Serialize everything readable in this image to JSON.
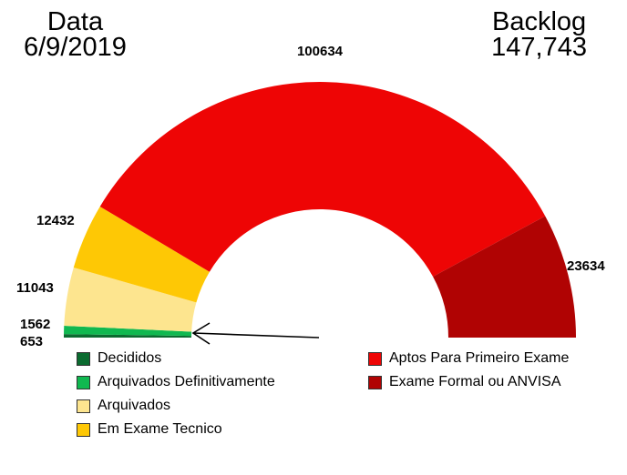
{
  "header": {
    "date_label": "Data",
    "date_value": "6/9/2019",
    "backlog_label": "Backlog",
    "backlog_value": "147,743"
  },
  "chart_data": {
    "type": "pie",
    "variant": "half-donut",
    "categories": [
      "Decididos",
      "Arquivados Definitivamente",
      "Arquivados",
      "Em Exame Tecnico",
      "Aptos Para Primeiro Exame",
      "Exame Formal ou ANVISA"
    ],
    "values": [
      653,
      1562,
      11043,
      12432,
      100634,
      23634
    ],
    "colors": [
      "#0b6b30",
      "#10b850",
      "#fde58f",
      "#fec805",
      "#ee0505",
      "#b00303"
    ],
    "data_labels": [
      "653",
      "1562",
      "11043",
      "12432",
      "100634",
      "23634"
    ],
    "legend_position": "bottom",
    "annotation": "arrow pointing to the Decididos / Arquivados Definitivamente slices"
  }
}
